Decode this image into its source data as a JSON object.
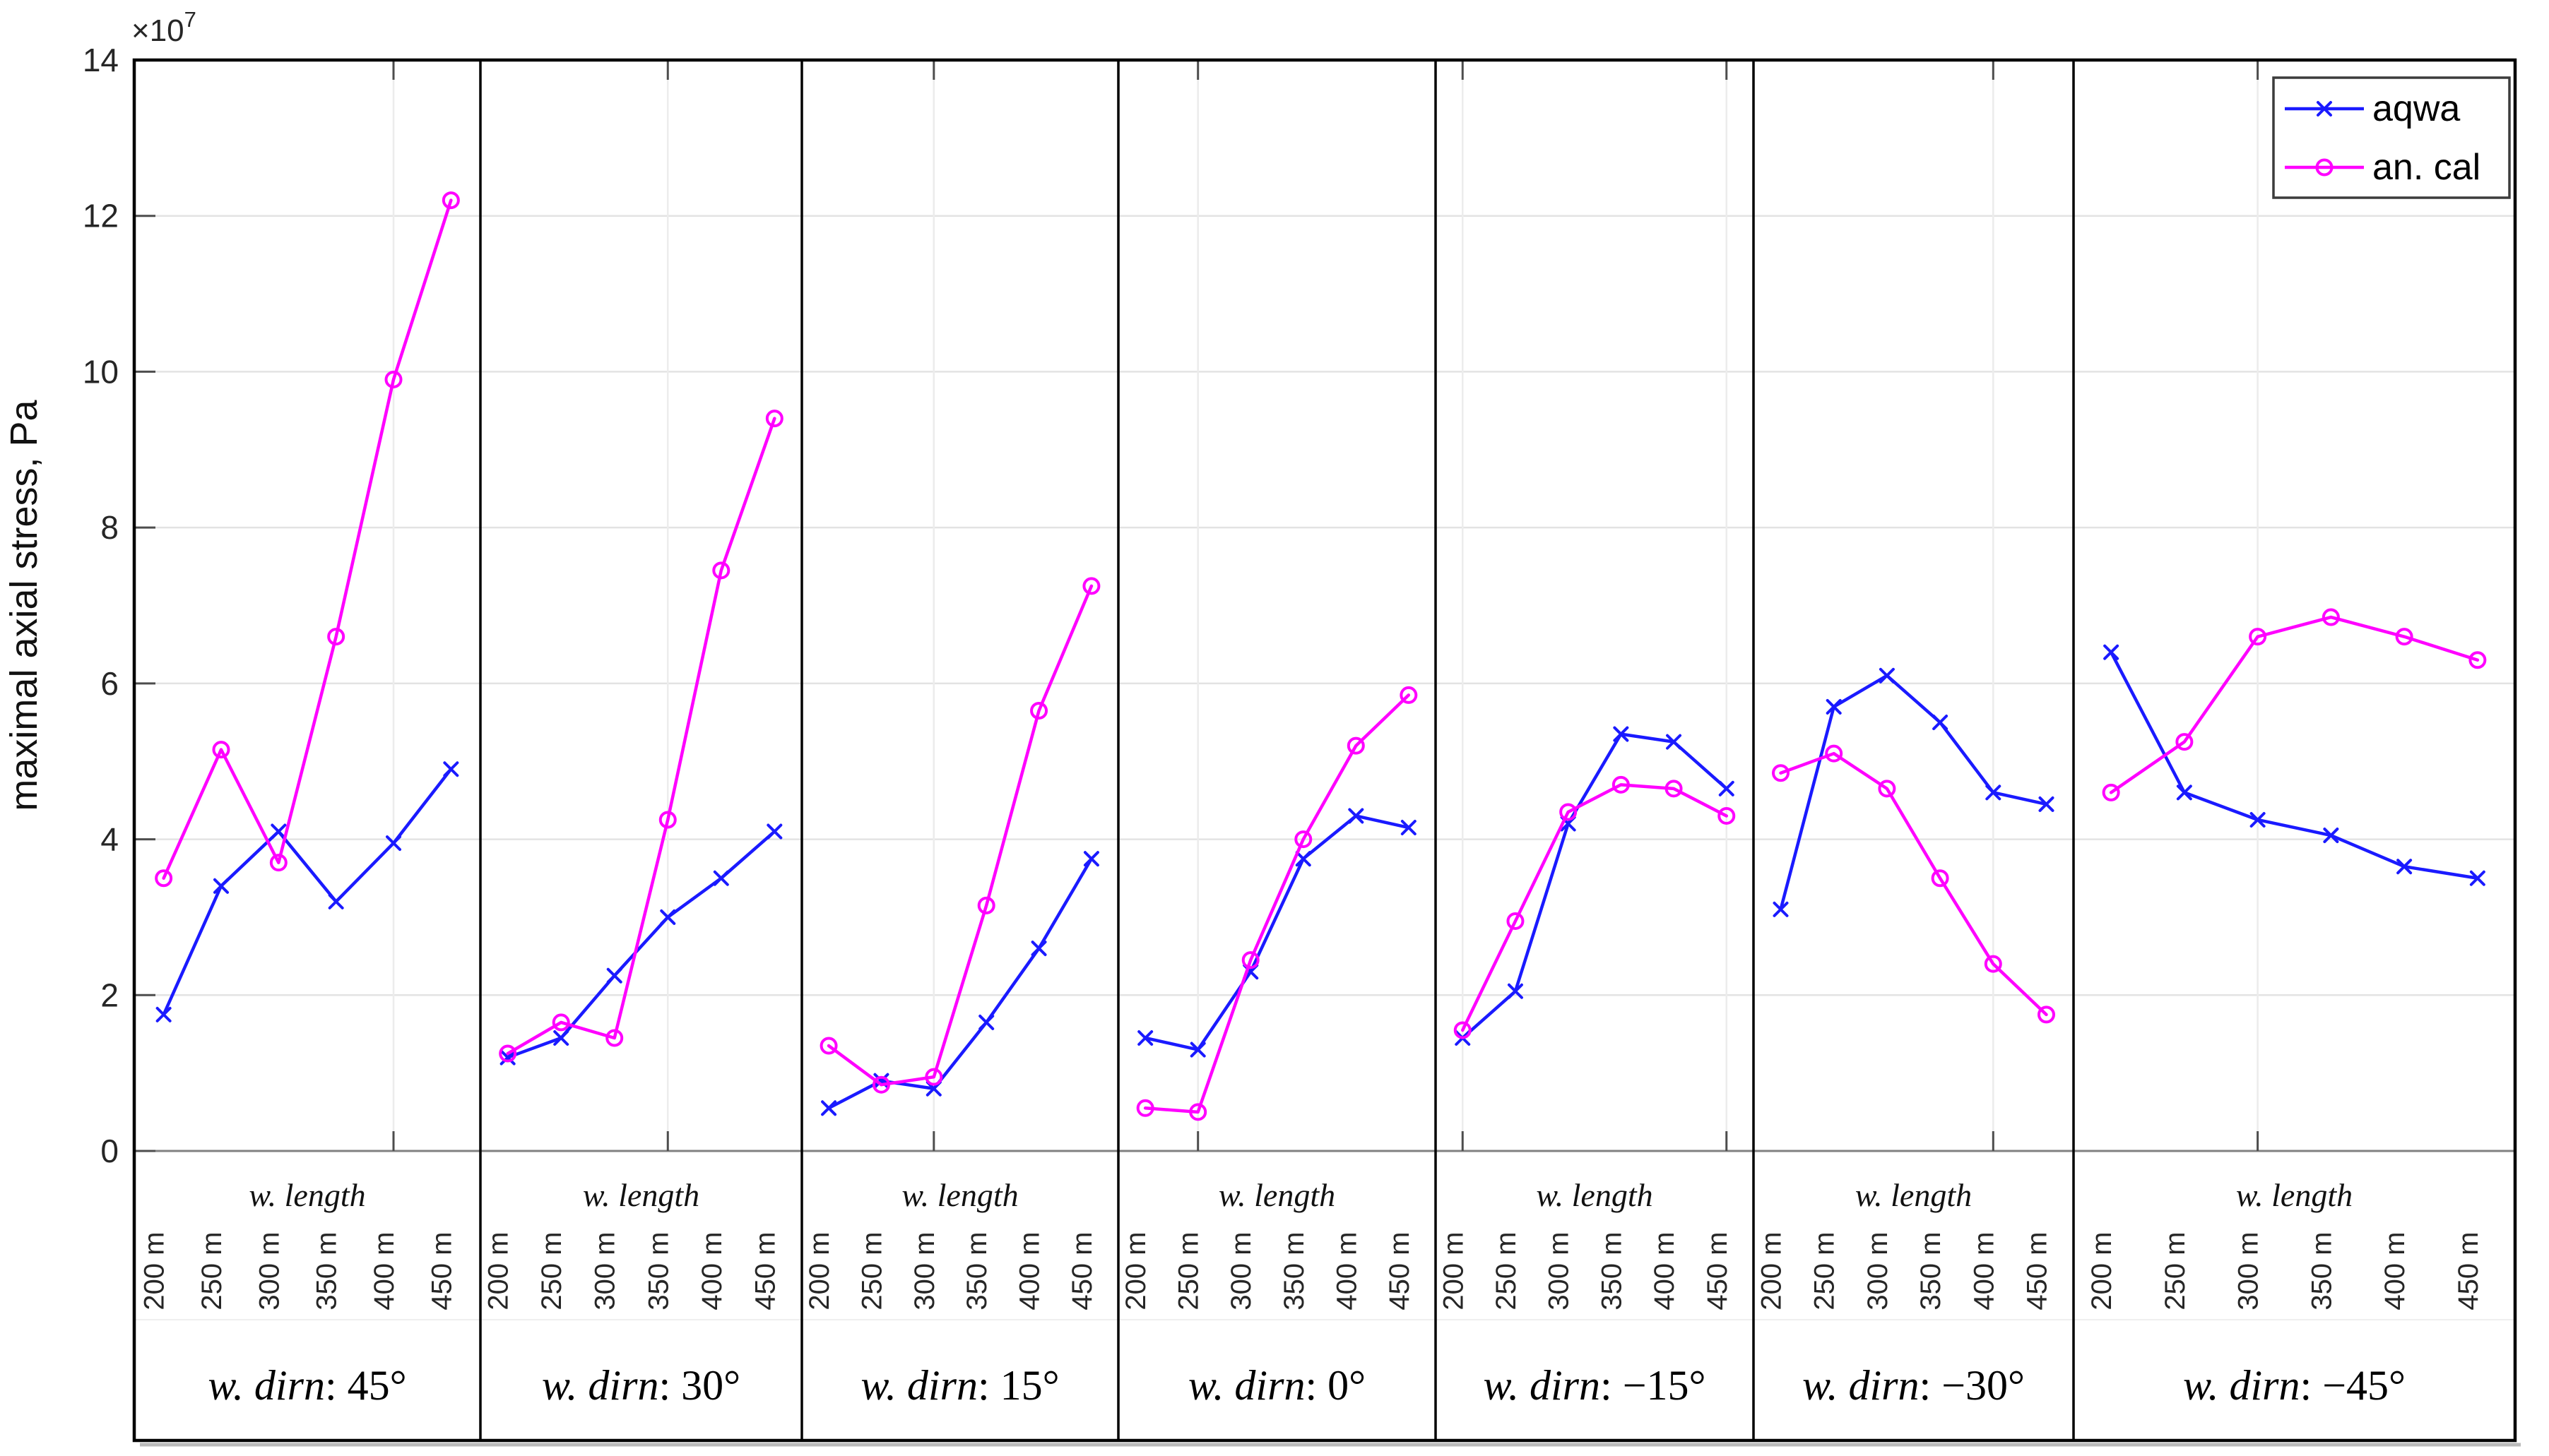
{
  "figure": {
    "y_axis": {
      "label": "maximal axial stress, Pa",
      "exponent_base": "×10",
      "exponent_power": "7",
      "tick_values": [
        0,
        2,
        4,
        6,
        8,
        10,
        12,
        14
      ]
    },
    "x_axis": {
      "group_label": "w. length",
      "tick_labels": [
        "200 m",
        "250 m",
        "300 m",
        "350 m",
        "400 m",
        "450 m"
      ]
    },
    "legend": {
      "items": [
        {
          "label": "aqwa",
          "color": "#1a1aff",
          "marker": "x"
        },
        {
          "label": "an. cal",
          "color": "#ff00ff",
          "marker": "o"
        }
      ]
    },
    "colors": {
      "aqwa": "#1a1aff",
      "an_cal": "#ff00ff",
      "grid": "#e3e3e3",
      "vgrid": "#ececec",
      "zero_line": "#808080",
      "tick": "#4d4d4d",
      "border": "#000000",
      "text": "#262626",
      "shadow": "#b9b9b9"
    }
  },
  "chart_data": {
    "type": "line",
    "title": "",
    "ylabel": "maximal axial stress, Pa",
    "y_unit": "Pa",
    "y_scale_factor": "1e7",
    "ylim": [
      0,
      14
    ],
    "yticks": [
      0,
      2,
      4,
      6,
      8,
      10,
      12,
      14
    ],
    "grid": true,
    "legend_position": "top-right",
    "categories": [
      "200 m",
      "250 m",
      "300 m",
      "350 m",
      "400 m",
      "450 m"
    ],
    "series_names": [
      "aqwa",
      "an. cal"
    ],
    "series_markers": {
      "aqwa": "x",
      "an. cal": "o"
    },
    "values_note": "values in units of 1e7 Pa",
    "panels": [
      {
        "label": "w. dirn",
        "angle": "45°",
        "gridline_category_indices": [
          4
        ],
        "aqwa": [
          1.75,
          3.4,
          4.1,
          3.2,
          3.95,
          4.9
        ],
        "an_cal": [
          3.5,
          5.15,
          3.7,
          6.6,
          9.9,
          12.2
        ]
      },
      {
        "label": "w. dirn",
        "angle": "30°",
        "gridline_category_indices": [
          3
        ],
        "aqwa": [
          1.2,
          1.45,
          2.25,
          3.0,
          3.5,
          4.1
        ],
        "an_cal": [
          1.25,
          1.65,
          1.45,
          4.25,
          7.45,
          9.4
        ]
      },
      {
        "label": "w. dirn",
        "angle": "15°",
        "gridline_category_indices": [
          2
        ],
        "aqwa": [
          0.55,
          0.9,
          0.8,
          1.65,
          2.6,
          3.75
        ],
        "an_cal": [
          1.35,
          0.85,
          0.95,
          3.15,
          5.65,
          7.25
        ]
      },
      {
        "label": "w. dirn",
        "angle": "0°",
        "gridline_category_indices": [
          1
        ],
        "aqwa": [
          1.45,
          1.3,
          2.3,
          3.75,
          4.3,
          4.15
        ],
        "an_cal": [
          0.55,
          0.5,
          2.45,
          4.0,
          5.2,
          5.85
        ]
      },
      {
        "label": "w. dirn",
        "angle": "−15°",
        "gridline_category_indices": [
          0,
          5
        ],
        "aqwa": [
          1.45,
          2.05,
          4.2,
          5.35,
          5.25,
          4.65
        ],
        "an_cal": [
          1.55,
          2.95,
          4.35,
          4.7,
          4.65,
          4.3
        ]
      },
      {
        "label": "w. dirn",
        "angle": "−30°",
        "gridline_category_indices": [
          4
        ],
        "aqwa": [
          3.1,
          5.7,
          6.1,
          5.5,
          4.6,
          4.45
        ],
        "an_cal": [
          4.85,
          5.1,
          4.65,
          3.5,
          2.4,
          1.75
        ]
      },
      {
        "label": "w. dirn",
        "angle": "−45°",
        "gridline_category_indices": [
          2
        ],
        "aqwa": [
          6.4,
          4.6,
          4.25,
          4.05,
          3.65,
          3.5
        ],
        "an_cal": [
          4.6,
          5.25,
          6.6,
          6.85,
          6.6,
          6.3
        ]
      }
    ]
  }
}
